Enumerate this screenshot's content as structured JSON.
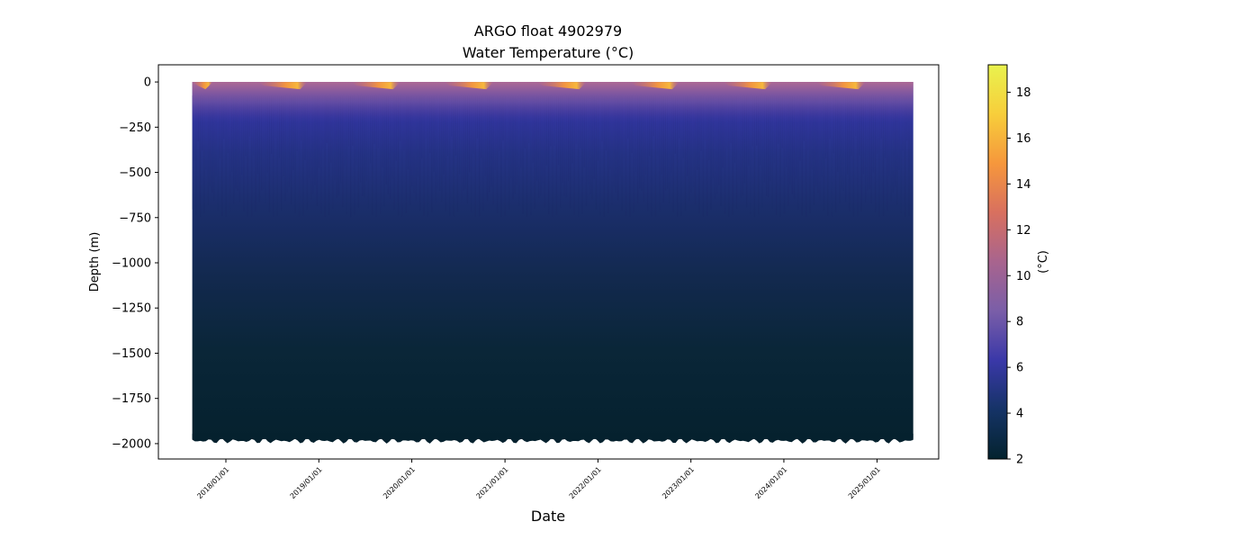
{
  "chart_data": {
    "type": "scatter",
    "title_line1": "ARGO float 4902979",
    "title_line2": "Water Temperature (°C)",
    "xlabel": "Date",
    "ylabel": "Depth (m)",
    "x_range": [
      "2017-04-11",
      "2025-08-31"
    ],
    "ylim": [
      -2085,
      95
    ],
    "y_ticks": [
      0,
      -250,
      -500,
      -750,
      -1000,
      -1250,
      -1500,
      -1750,
      -2000
    ],
    "x_ticks": [
      "2018/01/01",
      "2019/01/01",
      "2020/01/01",
      "2021/01/01",
      "2022/01/01",
      "2023/01/01",
      "2024/01/01",
      "2025/01/01"
    ],
    "data_x_range": [
      "2017-08-22",
      "2025-05-23"
    ],
    "data_depth_range": [
      0,
      -1975
    ],
    "colorbar": {
      "label": "(°C)",
      "range": [
        2.0,
        19.2
      ],
      "ticks": [
        2,
        4,
        6,
        8,
        10,
        12,
        14,
        16,
        18
      ],
      "colormap": "thermal",
      "colors": [
        "#04232e",
        "#153366",
        "#3a38a8",
        "#7a5ea8",
        "#a8648e",
        "#d8705f",
        "#f6973c",
        "#f7ce3b",
        "#e9f24e"
      ]
    },
    "summer_surface_peaks": [
      "2017-08-25",
      "2018-09-01",
      "2019-09-01",
      "2020-09-01",
      "2021-09-01",
      "2022-09-01",
      "2023-09-01",
      "2024-09-01"
    ]
  }
}
